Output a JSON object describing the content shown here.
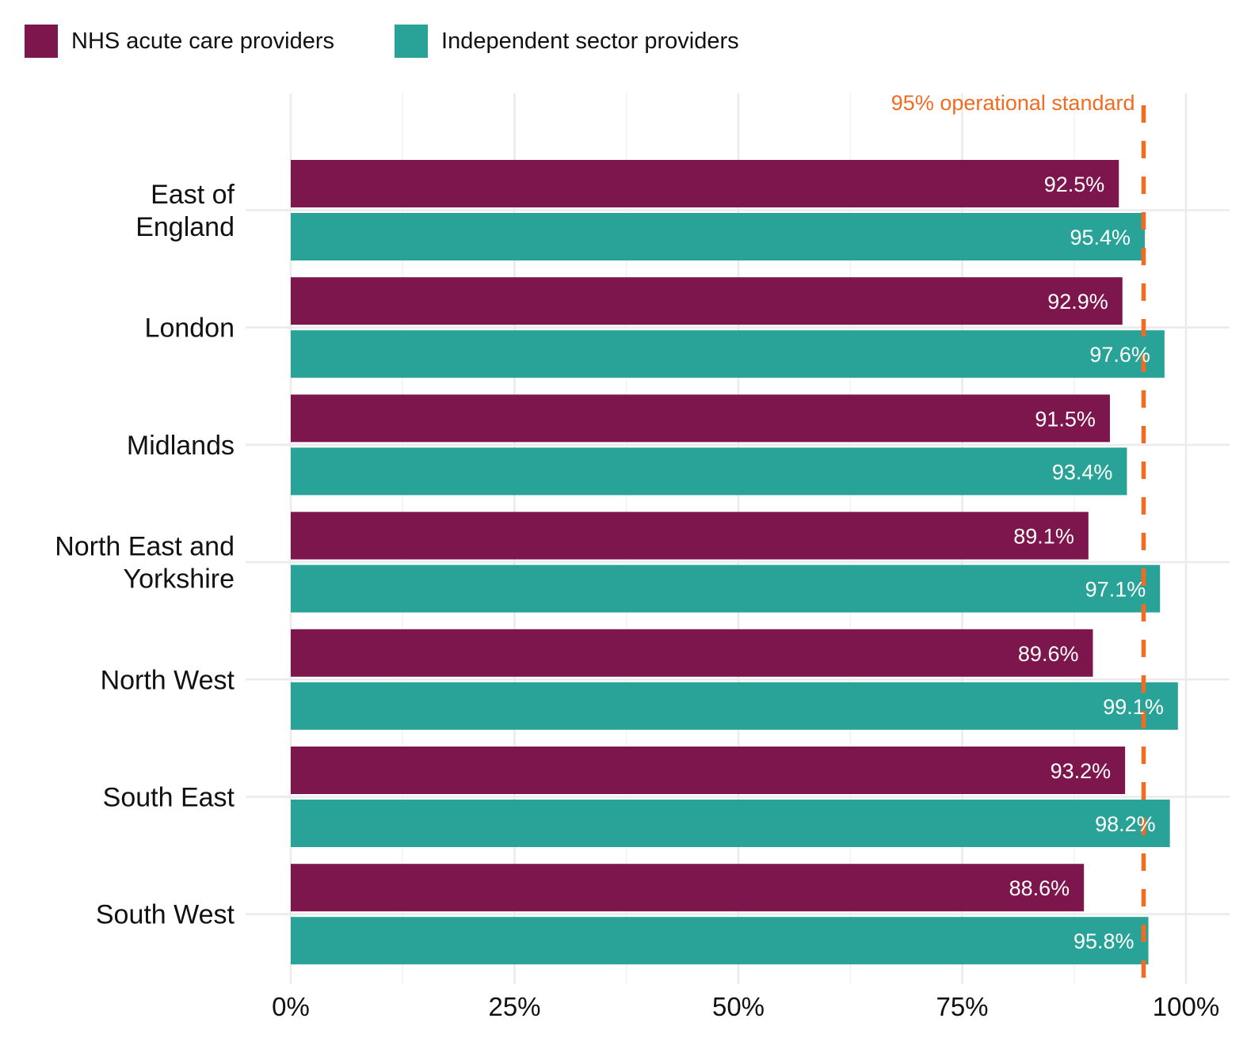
{
  "chart_data": {
    "type": "bar",
    "orientation": "horizontal",
    "title": "",
    "xlabel": "",
    "ylabel": "",
    "xlim": [
      0,
      100
    ],
    "x_ticks": [
      0,
      25,
      50,
      75,
      100
    ],
    "x_tick_labels": [
      "0%",
      "25%",
      "50%",
      "75%",
      "100%"
    ],
    "grid": true,
    "legend_position": "top-left",
    "categories": [
      [
        "East of",
        "England"
      ],
      [
        "London"
      ],
      [
        "Midlands"
      ],
      [
        "North East and",
        "Yorkshire"
      ],
      [
        "North West"
      ],
      [
        "South East"
      ],
      [
        "South West"
      ]
    ],
    "series": [
      {
        "name": "NHS acute care providers",
        "color": "#7D164D",
        "values": [
          92.5,
          92.9,
          91.5,
          89.1,
          89.6,
          93.2,
          88.6
        ],
        "labels": [
          "92.5%",
          "92.9%",
          "91.5%",
          "89.1%",
          "89.6%",
          "93.2%",
          "88.6%"
        ]
      },
      {
        "name": "Independent sector providers",
        "color": "#29A397",
        "values": [
          95.4,
          97.6,
          93.4,
          97.1,
          99.1,
          98.2,
          95.8
        ],
        "labels": [
          "95.4%",
          "97.6%",
          "93.4%",
          "97.1%",
          "99.1%",
          "98.2%",
          "95.8%"
        ]
      }
    ],
    "reference_line": {
      "value": 95,
      "label": "95% operational standard",
      "color": "#F26B21",
      "style": "dashed"
    }
  }
}
